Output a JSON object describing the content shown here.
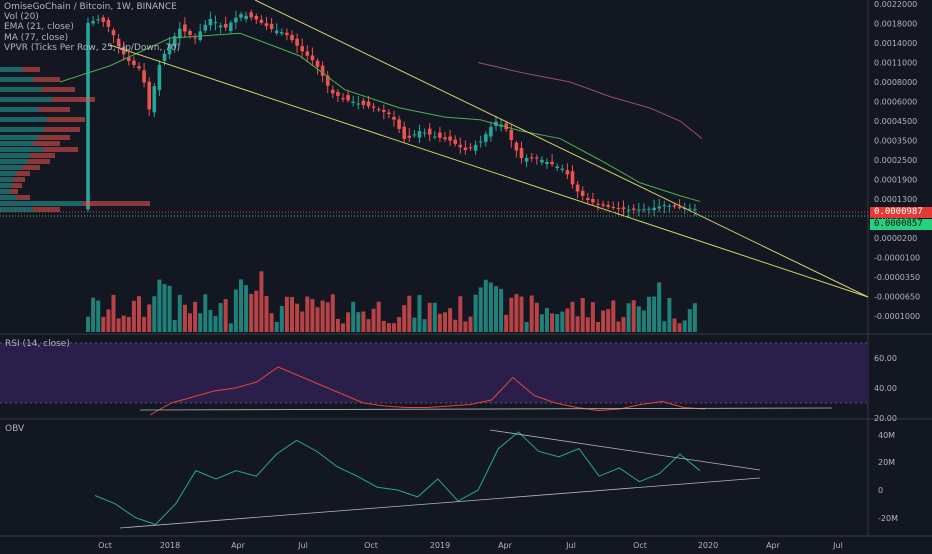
{
  "legend": {
    "symbol": "OmiseGoChain / Bitcoin, 1W, BINANCE",
    "vol": "Vol (20)",
    "ema": "EMA (21, close)",
    "ma": "MA (77, close)",
    "vpvr": "VPVR (Ticks Per Row, 25, Up/Down, 70)"
  },
  "rsi_label": "RSI (14, close)",
  "obv_label": "OBV",
  "last_price": "0.0000987",
  "secondary_price": "0.0000857",
  "colors": {
    "background": "#131722",
    "up": "#26a69a",
    "down": "#ef5350",
    "ema": "#4caf50",
    "ma": "#9c4a73",
    "trendline": "#d4d06a",
    "rsi_band": "#2a1f4a",
    "rsi_line": "#e4453a",
    "obv_line": "#26a69a"
  },
  "chart_data": [
    {
      "type": "candlestick",
      "title": "OmiseGoChain / Bitcoin, 1W, BINANCE",
      "x_ticks": [
        "Oct",
        "2018",
        "Apr",
        "Jul",
        "Oct",
        "2019",
        "Apr",
        "Jul",
        "Oct",
        "2020",
        "Apr",
        "Jul"
      ],
      "y_ticks": [
        "0.0022000",
        "0.0018000",
        "0.0014000",
        "0.0011000",
        "0.0008000",
        "0.0006000",
        "0.0004500",
        "0.0003500",
        "0.0002500",
        "0.0001900",
        "0.0001300",
        "0.0000500",
        "0.0000200",
        "-0.0000100",
        "-0.0000350",
        "-0.0000650",
        "-0.0001000"
      ],
      "series": [
        {
          "name": "EMA (21, close)",
          "values": [
            0.0008,
            0.00105,
            0.0015,
            0.0016,
            0.0012,
            0.00072,
            0.00055,
            0.00048,
            0.00046,
            0.0004,
            0.00036,
            0.00025,
            0.00018,
            0.00014,
            0.00012
          ]
        },
        {
          "name": "MA (77, close)",
          "values": [
            0.0011,
            0.00095,
            0.0008,
            0.00065,
            0.00055,
            0.00045,
            0.00036
          ]
        }
      ],
      "volume_visible": true
    },
    {
      "type": "line",
      "title": "RSI (14, close)",
      "y_ticks": [
        "60.00",
        "40.00",
        "20.00"
      ],
      "values": [
        22,
        30,
        34,
        38,
        40,
        44,
        54,
        48,
        42,
        36,
        30,
        28,
        27,
        27,
        28,
        29,
        32,
        47,
        35,
        30,
        27,
        25,
        26,
        29,
        31,
        27,
        26
      ]
    },
    {
      "type": "line",
      "title": "OBV",
      "y_ticks": [
        "40M",
        "20M",
        "0",
        "-20M"
      ],
      "values": [
        -4,
        -10,
        -20,
        -25,
        -10,
        14,
        8,
        14,
        10,
        26,
        36,
        28,
        17,
        10,
        2,
        0,
        -5,
        8,
        -8,
        0,
        30,
        42,
        28,
        24,
        30,
        10,
        16,
        6,
        12,
        26,
        14
      ]
    }
  ]
}
